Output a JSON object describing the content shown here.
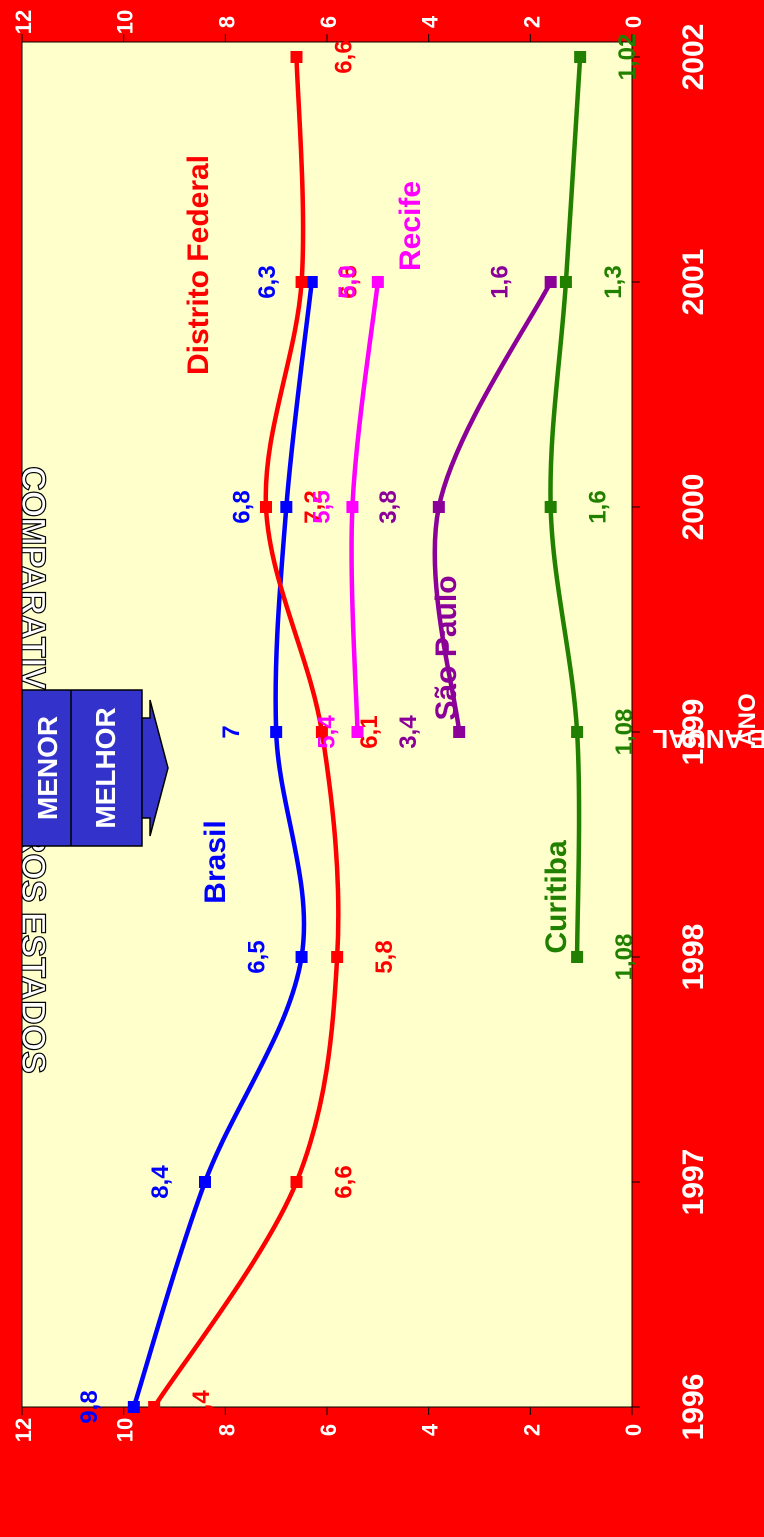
{
  "chart_data": {
    "type": "line",
    "title": "COMPARATIVO A OUTROS ESTADOS",
    "xlabel": "ANO",
    "ylabel": "ÍNDICE ANUAL",
    "x": [
      1996,
      1997,
      1998,
      1999,
      2000,
      2001,
      2002
    ],
    "xticks": [
      "1996",
      "1997",
      "1998",
      "1999",
      "2000",
      "2001",
      "2002"
    ],
    "ylim": [
      0,
      12
    ],
    "yticks": [
      "0",
      "2",
      "4",
      "6",
      "8",
      "10",
      "12"
    ],
    "series": [
      {
        "name": "Brasil",
        "color": "#0000ff",
        "points": [
          {
            "x": 1996,
            "y": 9.8,
            "label": "9,8"
          },
          {
            "x": 1997,
            "y": 8.4,
            "label": "8,4"
          },
          {
            "x": 1998,
            "y": 6.5,
            "label": "6,5"
          },
          {
            "x": 1999,
            "y": 7.0,
            "label": "7"
          },
          {
            "x": 2000,
            "y": 6.8,
            "label": "6,8"
          },
          {
            "x": 2001,
            "y": 6.3,
            "label": "6,3"
          }
        ]
      },
      {
        "name": "Distrito Federal",
        "color": "#ff0000",
        "points": [
          {
            "x": 1996,
            "y": 9.4,
            "label": "9,4"
          },
          {
            "x": 1997,
            "y": 6.6,
            "label": "6,6"
          },
          {
            "x": 1998,
            "y": 5.8,
            "label": "5,8"
          },
          {
            "x": 1999,
            "y": 6.1,
            "label": "6,1"
          },
          {
            "x": 2000,
            "y": 7.2,
            "label": "7,2"
          },
          {
            "x": 2001,
            "y": 6.5,
            "label": "6,5"
          },
          {
            "x": 2002,
            "y": 6.6,
            "label": "6,6"
          }
        ]
      },
      {
        "name": "Recife",
        "color": "#ff00ff",
        "points": [
          {
            "x": 1999,
            "y": 5.4,
            "label": "5,4"
          },
          {
            "x": 2000,
            "y": 5.5,
            "label": "5,5"
          },
          {
            "x": 2001,
            "y": 5.0,
            "label": "5,0"
          }
        ]
      },
      {
        "name": "São Paulo",
        "color": "#8b0099",
        "points": [
          {
            "x": 1999,
            "y": 3.4,
            "label": "3,4"
          },
          {
            "x": 2000,
            "y": 3.8,
            "label": "3,8"
          },
          {
            "x": 2001,
            "y": 1.6,
            "label": "1,6"
          }
        ]
      },
      {
        "name": "Curitiba",
        "color": "#228000",
        "points": [
          {
            "x": 1998,
            "y": 1.08,
            "label": "1,08"
          },
          {
            "x": 1999,
            "y": 1.08,
            "label": "1,08"
          },
          {
            "x": 2000,
            "y": 1.6,
            "label": "1,6"
          },
          {
            "x": 2001,
            "y": 1.3,
            "label": "1,3"
          },
          {
            "x": 2002,
            "y": 1.02,
            "label": "1,02"
          }
        ]
      }
    ],
    "annotation": {
      "line1": "MENOR",
      "line2": "MELHOR",
      "color": "#3333cc"
    },
    "plot_background": "#ffffcc",
    "page_background": "#ff0000"
  }
}
